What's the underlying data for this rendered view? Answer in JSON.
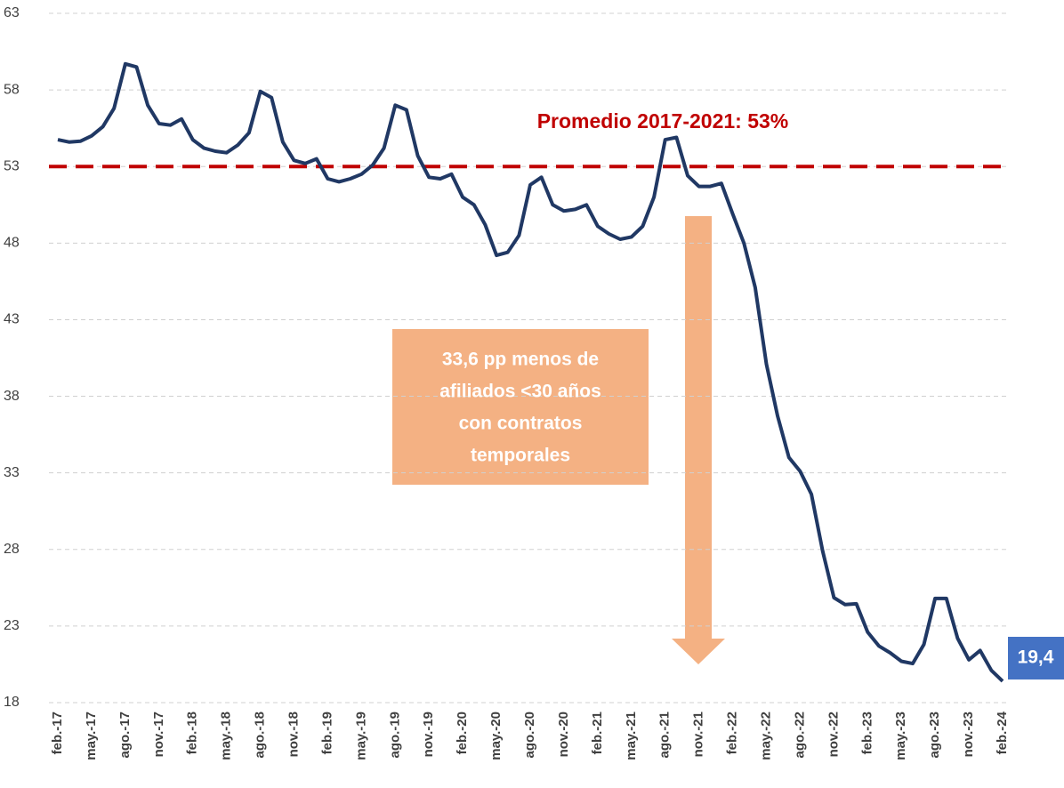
{
  "chart_data": {
    "type": "line",
    "categories": [
      "feb.-17",
      null,
      null,
      "may.-17",
      null,
      null,
      "ago.-17",
      null,
      null,
      "nov.-17",
      null,
      null,
      "feb.-18",
      null,
      null,
      "may.-18",
      null,
      null,
      "ago.-18",
      null,
      null,
      "nov.-18",
      null,
      null,
      "feb.-19",
      null,
      null,
      "may.-19",
      null,
      null,
      "ago.-19",
      null,
      null,
      "nov.-19",
      null,
      null,
      "feb.-20",
      null,
      null,
      "may.-20",
      null,
      null,
      "ago.-20",
      null,
      null,
      "nov.-20",
      null,
      null,
      "feb.-21",
      null,
      null,
      "may.-21",
      null,
      null,
      "ago.-21",
      null,
      null,
      "nov.-21",
      null,
      null,
      "feb.-22",
      null,
      null,
      "may.-22",
      null,
      null,
      "ago.-22",
      null,
      null,
      "nov.-22",
      null,
      null,
      "feb.-23",
      null,
      null,
      "may.-23",
      null,
      null,
      "ago.-23",
      null,
      null,
      "nov.-23",
      null,
      null,
      "feb.-24"
    ],
    "series": [
      {
        "color": "#203864",
        "values": [
          54.75,
          54.6,
          54.65,
          55.0,
          55.6,
          56.8,
          59.7,
          59.5,
          57.0,
          55.8,
          55.7,
          56.1,
          54.75,
          54.2,
          54.0,
          53.9,
          54.4,
          55.2,
          57.9,
          57.5,
          54.6,
          53.4,
          53.2,
          53.5,
          52.2,
          52.0,
          52.2,
          52.5,
          53.1,
          54.2,
          57.0,
          56.7,
          53.7,
          52.3,
          52.2,
          52.5,
          51.0,
          50.5,
          49.2,
          47.2,
          47.4,
          48.5,
          51.8,
          52.3,
          50.5,
          50.1,
          50.2,
          50.5,
          49.1,
          48.6,
          48.25,
          48.4,
          49.1,
          51.0,
          54.75,
          54.9,
          52.4,
          51.7,
          51.7,
          51.9,
          49.9,
          48.0,
          45.1,
          40.1,
          36.7,
          34.0,
          33.1,
          31.6,
          27.9,
          24.85,
          24.4,
          24.45,
          22.6,
          21.7,
          21.25,
          20.7,
          20.55,
          21.8,
          24.8,
          24.8,
          22.2,
          20.8,
          21.4,
          20.1,
          19.4
        ],
        "value_labels": [
          null,
          null,
          null,
          null,
          null,
          null,
          null,
          null,
          null,
          null,
          null,
          null,
          null,
          null,
          null,
          null,
          null,
          null,
          null,
          null,
          null,
          null,
          null,
          null,
          null,
          null,
          null,
          null,
          null,
          null,
          null,
          null,
          null,
          null,
          null,
          null,
          null,
          null,
          null,
          null,
          null,
          null,
          null,
          null,
          null,
          null,
          null,
          null,
          null,
          null,
          null,
          null,
          null,
          null,
          null,
          null,
          null,
          null,
          null,
          null,
          null,
          null,
          null,
          null,
          null,
          null,
          null,
          null,
          null,
          null,
          null,
          null,
          null,
          null,
          null,
          null,
          null,
          null,
          null,
          null,
          null,
          null,
          null,
          null,
          "19,4"
        ]
      }
    ],
    "ylim": [
      18,
      63
    ],
    "yticks": [
      18,
      23,
      28,
      33,
      38,
      43,
      48,
      53,
      58,
      63
    ],
    "grid": true,
    "reference_line": {
      "value": 53,
      "label": "Promedio 2017-2021: 53%",
      "color": "#c00000"
    },
    "annotation": [
      "33,6 pp menos de",
      "afiliados <30 años",
      "con contratos",
      "temporales"
    ]
  }
}
